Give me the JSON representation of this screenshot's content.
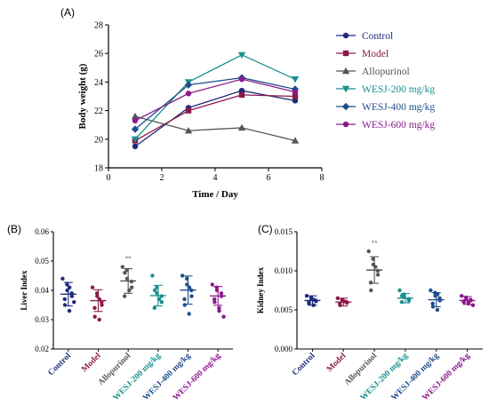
{
  "chart_data": [
    {
      "type": "line",
      "panel": "(A)",
      "xlabel": "Time / Day",
      "ylabel": "Body weight (g)",
      "xlim": [
        0,
        8
      ],
      "ylim": [
        18,
        28
      ],
      "xticks": [
        "0",
        "2",
        "4",
        "6",
        "8"
      ],
      "yticks": [
        "18",
        "20",
        "22",
        "24",
        "26",
        "28"
      ],
      "x": [
        1,
        3,
        5,
        7
      ],
      "series": [
        {
          "name": "Control",
          "color": "#1f2a7a",
          "marker": "circle",
          "values": [
            19.5,
            22.2,
            23.4,
            22.7
          ]
        },
        {
          "name": "Model",
          "color": "#8b1a4a",
          "marker": "square",
          "values": [
            19.9,
            22.0,
            23.1,
            23.0
          ]
        },
        {
          "name": "Allopurinol",
          "color": "#555555",
          "marker": "triangle-up",
          "values": [
            21.6,
            20.6,
            20.8,
            19.9
          ]
        },
        {
          "name": "WESJ-200 mg/kg",
          "color": "#17918f",
          "marker": "triangle-down",
          "values": [
            20.0,
            24.0,
            25.9,
            24.2
          ]
        },
        {
          "name": "WESJ-400 mg/kg",
          "color": "#1f4e8c",
          "marker": "diamond",
          "values": [
            20.7,
            23.8,
            24.3,
            23.5
          ]
        },
        {
          "name": "WESJ-600 mg/kg",
          "color": "#8b1a8b",
          "marker": "circle",
          "values": [
            21.3,
            23.2,
            24.2,
            23.3
          ]
        }
      ],
      "legend": "right"
    },
    {
      "type": "scatter",
      "panel": "(B)",
      "ylabel": "Liver Index",
      "ylim": [
        0.02,
        0.06
      ],
      "yticks": [
        "0.02",
        "0.03",
        "0.04",
        "0.05",
        "0.06"
      ],
      "categories": [
        "Control",
        "Model",
        "Allopurinol",
        "WESJ-200 mg/kg",
        "WESJ-400 mg/kg",
        "WESJ-600 mg/kg"
      ],
      "colors": [
        "#1f2a7a",
        "#8b1a4a",
        "#555555",
        "#17918f",
        "#1f4e8c",
        "#8b1a8b"
      ],
      "mean": [
        0.0387,
        0.0365,
        0.0432,
        0.0382,
        0.0401,
        0.0381
      ],
      "sd": [
        0.004,
        0.0037,
        0.0042,
        0.0035,
        0.0048,
        0.0032
      ],
      "points": [
        [
          0.044,
          0.042,
          0.04,
          0.039,
          0.038,
          0.037,
          0.035,
          0.033,
          0.041,
          0.036
        ],
        [
          0.041,
          0.039,
          0.038,
          0.036,
          0.035,
          0.034,
          0.031,
          0.03,
          0.037
        ],
        [
          0.048,
          0.047,
          0.044,
          0.043,
          0.041,
          0.038,
          0.046,
          0.04
        ],
        [
          0.045,
          0.041,
          0.039,
          0.038,
          0.036,
          0.034,
          0.04,
          0.037
        ],
        [
          0.045,
          0.044,
          0.042,
          0.04,
          0.038,
          0.037,
          0.035,
          0.032,
          0.041
        ],
        [
          0.042,
          0.041,
          0.04,
          0.039,
          0.038,
          0.037,
          0.036,
          0.034,
          0.033,
          0.031
        ]
      ],
      "annotations": [
        {
          "category": "Allopurinol",
          "text": "**"
        }
      ]
    },
    {
      "type": "scatter",
      "panel": "(C)",
      "ylabel": "Kidney Index",
      "ylim": [
        0.0,
        0.015
      ],
      "yticks": [
        "0.000",
        "0.005",
        "0.010",
        "0.015"
      ],
      "categories": [
        "Control",
        "Model",
        "Allopurinol",
        "WESJ-200 mg/kg",
        "WESJ-400 mg/kg",
        "WESJ-600 mg/kg"
      ],
      "colors": [
        "#1f2a7a",
        "#8b1a4a",
        "#555555",
        "#17918f",
        "#1f4e8c",
        "#8b1a8b"
      ],
      "mean": [
        0.0062,
        0.006,
        0.0101,
        0.0065,
        0.0063,
        0.0062
      ],
      "sd": [
        0.0006,
        0.0005,
        0.0017,
        0.0006,
        0.0009,
        0.0005
      ],
      "points": [
        [
          0.0068,
          0.0066,
          0.0064,
          0.0062,
          0.0061,
          0.006,
          0.0058,
          0.0056,
          0.0063
        ],
        [
          0.0065,
          0.0063,
          0.0062,
          0.006,
          0.0059,
          0.0058,
          0.0056,
          0.0061
        ],
        [
          0.0125,
          0.0115,
          0.0108,
          0.01,
          0.0095,
          0.0085,
          0.0075,
          0.0105
        ],
        [
          0.0075,
          0.007,
          0.0066,
          0.0064,
          0.0062,
          0.006,
          0.0068
        ],
        [
          0.0075,
          0.0072,
          0.0068,
          0.0065,
          0.0062,
          0.0058,
          0.0054,
          0.005,
          0.007
        ],
        [
          0.0068,
          0.0066,
          0.0064,
          0.0063,
          0.0062,
          0.0061,
          0.006,
          0.0059,
          0.0058,
          0.0056
        ]
      ],
      "annotations": [
        {
          "category": "Allopurinol",
          "text": "**"
        }
      ]
    }
  ]
}
